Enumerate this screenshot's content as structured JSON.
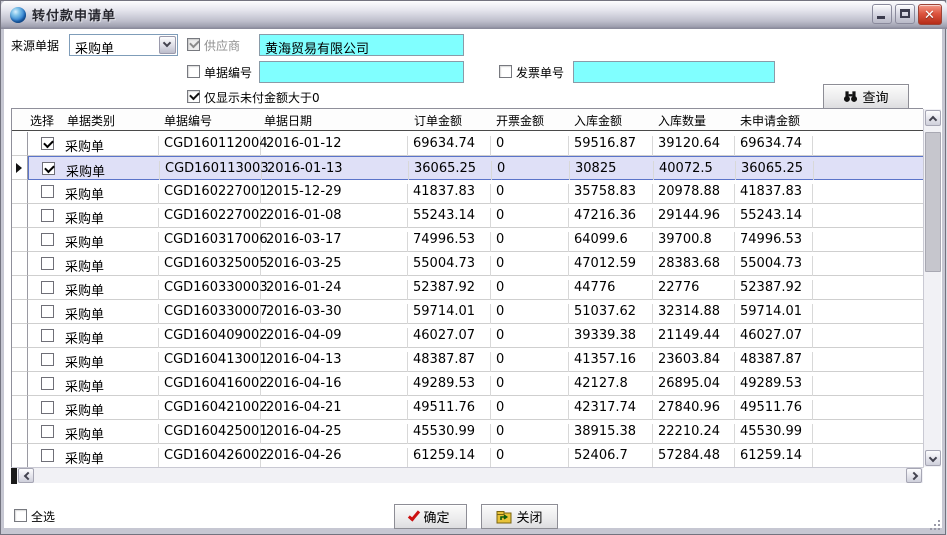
{
  "window": {
    "title": "转付款申请单"
  },
  "colors": {
    "field_bg": "#80ffff",
    "selected_row_bg": "#dfe0f7",
    "selected_row_border": "#5b74c9",
    "close_btn": "#c8402c"
  },
  "form": {
    "source_label": "来源单据",
    "source_value": "采购单",
    "supplier_label": "供应商",
    "supplier_checked": true,
    "supplier_value": "黄海贸易有限公司",
    "doc_no_label": "单据编号",
    "doc_no_checked": false,
    "doc_no_value": "",
    "invoice_no_label": "发票单号",
    "invoice_no_checked": false,
    "invoice_no_value": "",
    "only_unpaid_label": "仅显示未付金额大于0",
    "only_unpaid_checked": true,
    "query_label": "查询"
  },
  "table": {
    "headers": [
      "选择",
      "单据类别",
      "单据编号",
      "单据日期",
      "订单金额",
      "开票金额",
      "入库金额",
      "入库数量",
      "未申请金额"
    ],
    "rows": [
      {
        "checked": true,
        "selected": false,
        "type": "采购单",
        "no": "CGD160112004",
        "date": "2016-01-12",
        "order": "69634.74",
        "invoice": "0",
        "in_amount": "59516.87",
        "in_qty": "39120.64",
        "unapplied": "69634.74"
      },
      {
        "checked": true,
        "selected": true,
        "type": "采购单",
        "no": "CGD160113003",
        "date": "2016-01-13",
        "order": "36065.25",
        "invoice": "0",
        "in_amount": "30825",
        "in_qty": "40072.5",
        "unapplied": "36065.25"
      },
      {
        "checked": false,
        "selected": false,
        "type": "采购单",
        "no": "CGD160227001",
        "date": "2015-12-29",
        "order": "41837.83",
        "invoice": "0",
        "in_amount": "35758.83",
        "in_qty": "20978.88",
        "unapplied": "41837.83"
      },
      {
        "checked": false,
        "selected": false,
        "type": "采购单",
        "no": "CGD160227002",
        "date": "2016-01-08",
        "order": "55243.14",
        "invoice": "0",
        "in_amount": "47216.36",
        "in_qty": "29144.96",
        "unapplied": "55243.14"
      },
      {
        "checked": false,
        "selected": false,
        "type": "采购单",
        "no": "CGD160317006",
        "date": "2016-03-17",
        "order": "74996.53",
        "invoice": "0",
        "in_amount": "64099.6",
        "in_qty": "39700.8",
        "unapplied": "74996.53"
      },
      {
        "checked": false,
        "selected": false,
        "type": "采购单",
        "no": "CGD160325005",
        "date": "2016-03-25",
        "order": "55004.73",
        "invoice": "0",
        "in_amount": "47012.59",
        "in_qty": "28383.68",
        "unapplied": "55004.73"
      },
      {
        "checked": false,
        "selected": false,
        "type": "采购单",
        "no": "CGD160330003",
        "date": "2016-01-24",
        "order": "52387.92",
        "invoice": "0",
        "in_amount": "44776",
        "in_qty": "22776",
        "unapplied": "52387.92"
      },
      {
        "checked": false,
        "selected": false,
        "type": "采购单",
        "no": "CGD160330007",
        "date": "2016-03-30",
        "order": "59714.01",
        "invoice": "0",
        "in_amount": "51037.62",
        "in_qty": "32314.88",
        "unapplied": "59714.01"
      },
      {
        "checked": false,
        "selected": false,
        "type": "采购单",
        "no": "CGD160409002",
        "date": "2016-04-09",
        "order": "46027.07",
        "invoice": "0",
        "in_amount": "39339.38",
        "in_qty": "21149.44",
        "unapplied": "46027.07"
      },
      {
        "checked": false,
        "selected": false,
        "type": "采购单",
        "no": "CGD160413001",
        "date": "2016-04-13",
        "order": "48387.87",
        "invoice": "0",
        "in_amount": "41357.16",
        "in_qty": "23603.84",
        "unapplied": "48387.87"
      },
      {
        "checked": false,
        "selected": false,
        "type": "采购单",
        "no": "CGD160416002",
        "date": "2016-04-16",
        "order": "49289.53",
        "invoice": "0",
        "in_amount": "42127.8",
        "in_qty": "26895.04",
        "unapplied": "49289.53"
      },
      {
        "checked": false,
        "selected": false,
        "type": "采购单",
        "no": "CGD160421002",
        "date": "2016-04-21",
        "order": "49511.76",
        "invoice": "0",
        "in_amount": "42317.74",
        "in_qty": "27840.96",
        "unapplied": "49511.76"
      },
      {
        "checked": false,
        "selected": false,
        "type": "采购单",
        "no": "CGD160425001",
        "date": "2016-04-25",
        "order": "45530.99",
        "invoice": "0",
        "in_amount": "38915.38",
        "in_qty": "22210.24",
        "unapplied": "45530.99"
      },
      {
        "checked": false,
        "selected": false,
        "type": "采购单",
        "no": "CGD160426002",
        "date": "2016-04-26",
        "order": "61259.14",
        "invoice": "0",
        "in_amount": "52406.7",
        "in_qty": "57284.48",
        "unapplied": "61259.14"
      }
    ]
  },
  "footer": {
    "select_all_label": "全选",
    "select_all_checked": false,
    "ok_label": "确定",
    "close_label": "关闭"
  }
}
